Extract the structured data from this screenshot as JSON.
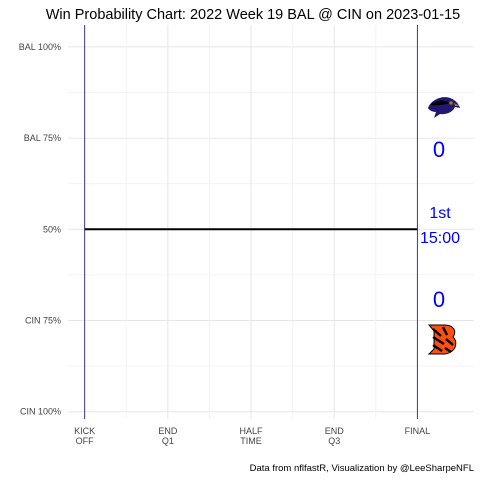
{
  "chart_data": {
    "type": "line",
    "title": "Win Probability Chart: 2022 Week 19 BAL @ CIN on 2023-01-15",
    "caption": "Data from nflfastR, Visualization by @LeeSharpeNFL",
    "xlabel": "",
    "ylabel": "",
    "x_ticks": [
      {
        "value": 0,
        "lines": [
          "KICK",
          "OFF"
        ]
      },
      {
        "value": 0.25,
        "lines": [
          "END",
          "Q1"
        ]
      },
      {
        "value": 0.5,
        "lines": [
          "HALF",
          "TIME"
        ]
      },
      {
        "value": 0.75,
        "lines": [
          "END",
          "Q3"
        ]
      },
      {
        "value": 1,
        "lines": [
          "FINAL"
        ]
      }
    ],
    "y_ticks": [
      {
        "value": 1.0,
        "label": "BAL 100%"
      },
      {
        "value": 0.75,
        "label": "BAL 75%"
      },
      {
        "value": 0.5,
        "label": "50%"
      },
      {
        "value": 0.25,
        "label": "CIN 75%"
      },
      {
        "value": 0.0,
        "label": "CIN 100%"
      }
    ],
    "xlim": [
      -0.05,
      1.17
    ],
    "ylim": [
      -0.02,
      1.06
    ],
    "grid": true,
    "series": [
      {
        "x": [
          0,
          1
        ],
        "y": [
          0.5,
          0.5
        ],
        "color": "#000000"
      }
    ],
    "vlines": [
      0,
      1
    ],
    "vline_color": "#3b3b8f",
    "teams": {
      "away": {
        "abbr": "BAL",
        "score": "0",
        "logo": "ravens-logo-icon"
      },
      "home": {
        "abbr": "CIN",
        "score": "0",
        "logo": "bengals-logo-icon"
      }
    },
    "game_state": {
      "quarter": "1st",
      "clock": "15:00"
    },
    "annotation_color": "#0000ff"
  }
}
